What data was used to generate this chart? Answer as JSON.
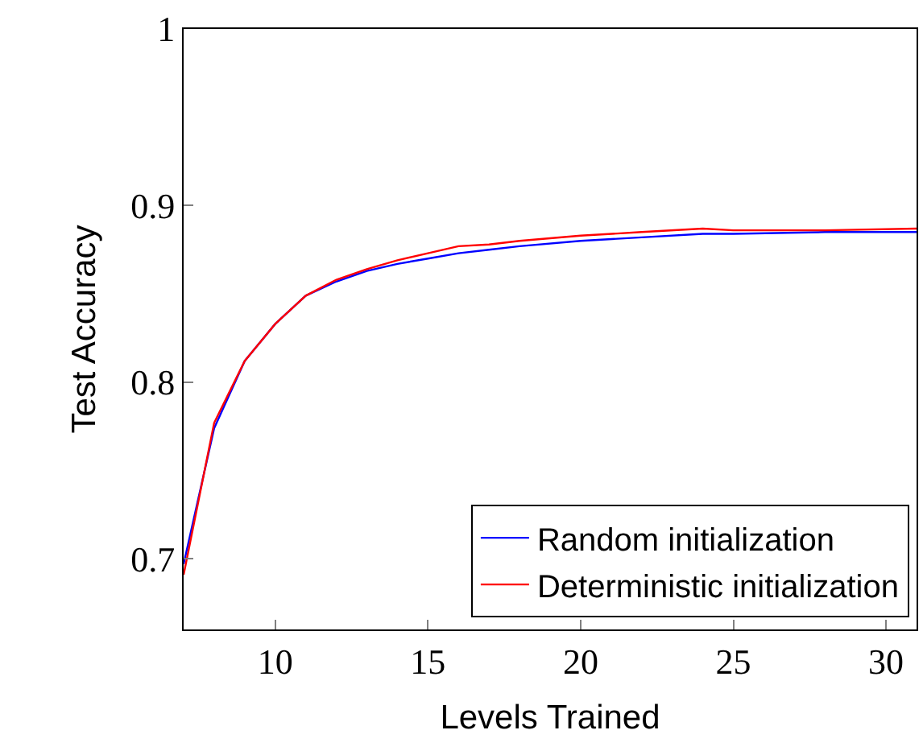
{
  "chart_data": {
    "type": "line",
    "xlabel": "Levels Trained",
    "ylabel": "Test Accuracy",
    "x": [
      7,
      8,
      9,
      10,
      11,
      12,
      13,
      14,
      15,
      16,
      17,
      18,
      20,
      22,
      24,
      25,
      28,
      31
    ],
    "series": [
      {
        "name": "Random initialization",
        "color": "#0000ff",
        "values": [
          0.697,
          0.774,
          0.812,
          0.833,
          0.849,
          0.857,
          0.863,
          0.867,
          0.87,
          0.873,
          0.875,
          0.877,
          0.88,
          0.882,
          0.884,
          0.884,
          0.885,
          0.885
        ]
      },
      {
        "name": "Deterministic initialization",
        "color": "#ff0000",
        "values": [
          0.691,
          0.777,
          0.812,
          0.833,
          0.849,
          0.858,
          0.864,
          0.869,
          0.873,
          0.877,
          0.878,
          0.88,
          0.883,
          0.885,
          0.887,
          0.886,
          0.886,
          0.887
        ]
      }
    ],
    "xlim": [
      7,
      31
    ],
    "xticks": [
      10,
      15,
      20,
      25,
      30
    ],
    "ylim": [
      0.66,
      1
    ],
    "yticks": [
      0.7,
      0.8,
      0.9,
      1
    ],
    "legend": "bottom right",
    "marker": "none",
    "line_style": "solid"
  }
}
